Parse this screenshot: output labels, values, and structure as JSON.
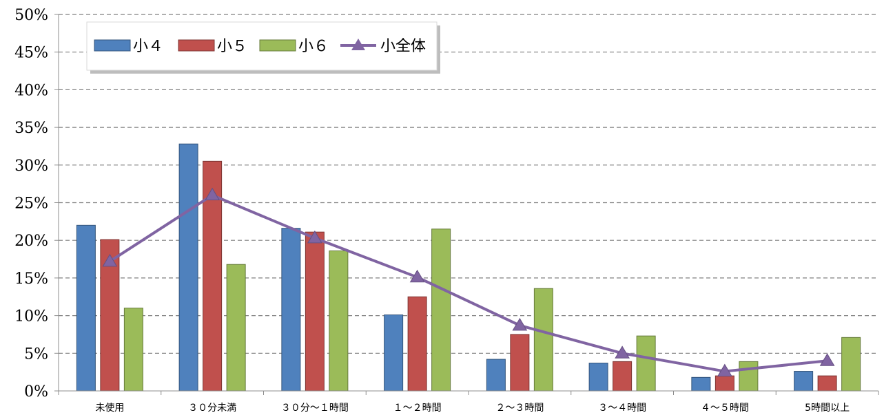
{
  "chart_data": {
    "type": "bar",
    "categories": [
      "未使用",
      "３０分未満",
      "３０分～１時間",
      "１～２時間",
      "２～３時間",
      "３～４時間",
      "４～５時間",
      "5時間以上"
    ],
    "series": [
      {
        "name": "小４",
        "type": "bar",
        "color": "#4F81BD",
        "values": [
          22.0,
          32.8,
          21.6,
          10.1,
          4.2,
          3.7,
          1.8,
          2.6
        ]
      },
      {
        "name": "小５",
        "type": "bar",
        "color": "#C0504D",
        "values": [
          20.1,
          30.5,
          21.1,
          12.5,
          7.5,
          3.9,
          2.0,
          2.0
        ]
      },
      {
        "name": "小６",
        "type": "bar",
        "color": "#9BBB59",
        "values": [
          11.0,
          16.8,
          18.6,
          21.5,
          13.6,
          7.3,
          3.9,
          7.1
        ]
      },
      {
        "name": "小全体",
        "type": "line",
        "color": "#8064A2",
        "values": [
          17.2,
          26.0,
          20.3,
          15.1,
          8.7,
          5.0,
          2.6,
          4.0
        ]
      }
    ],
    "yticks": [
      "0%",
      "5%",
      "10%",
      "15%",
      "20%",
      "25%",
      "30%",
      "35%",
      "40%",
      "45%",
      "50%"
    ],
    "ylim": [
      0,
      50
    ],
    "y_unit": "%",
    "grid": "horizontal dashed",
    "legend_position": "top-left"
  }
}
